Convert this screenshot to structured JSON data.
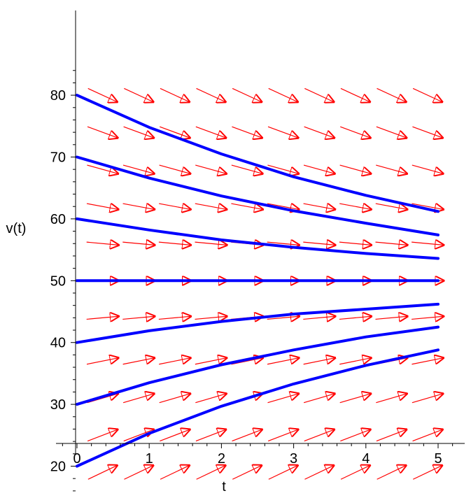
{
  "chart_data": {
    "type": "line",
    "title": "",
    "xlabel": "t",
    "ylabel": "v(t)",
    "xlim": [
      -0.3,
      5.3
    ],
    "ylim": [
      14,
      85
    ],
    "x_ticks": [
      0,
      1,
      2,
      3,
      4,
      5
    ],
    "y_ticks": [
      20,
      30,
      40,
      50,
      60,
      70,
      80
    ],
    "x_tick_labels": [
      "0",
      "1",
      "2",
      "3",
      "4",
      "5"
    ],
    "y_tick_labels": [
      "20",
      "30",
      "40",
      "50",
      "60",
      "70",
      "80"
    ],
    "grid": false,
    "legend": "none",
    "curve_color": "#0000ff",
    "field_color": "#ff0000",
    "series": [
      {
        "initial_value": 80,
        "x": [
          0,
          1,
          2,
          3,
          4,
          5
        ],
        "values": [
          80,
          74.8,
          70.5,
          66.8,
          63.8,
          61.2
        ]
      },
      {
        "initial_value": 70,
        "x": [
          0,
          1,
          2,
          3,
          4,
          5
        ],
        "values": [
          70,
          66.6,
          63.7,
          61.3,
          59.3,
          57.4
        ]
      },
      {
        "initial_value": 60,
        "x": [
          0,
          1,
          2,
          3,
          4,
          5
        ],
        "values": [
          60,
          58.2,
          56.6,
          55.4,
          54.4,
          53.6
        ]
      },
      {
        "initial_value": 50,
        "x": [
          0,
          1,
          2,
          3,
          4,
          5
        ],
        "values": [
          50,
          50,
          50,
          50,
          50,
          50
        ]
      },
      {
        "initial_value": 40,
        "x": [
          0,
          1,
          2,
          3,
          4,
          5
        ],
        "values": [
          40,
          41.9,
          43.4,
          44.6,
          45.4,
          46.2
        ]
      },
      {
        "initial_value": 30,
        "x": [
          0,
          1,
          2,
          3,
          4,
          5
        ],
        "values": [
          30,
          33.5,
          36.4,
          38.8,
          40.9,
          42.5
        ]
      },
      {
        "initial_value": 20,
        "x": [
          0,
          1,
          2,
          3,
          4,
          5
        ],
        "values": [
          20,
          25.3,
          29.7,
          33.3,
          36.3,
          38.8
        ]
      }
    ],
    "direction_field": {
      "equation_rate": 0.18,
      "equilibrium": 50,
      "t_values": [
        0.5,
        1.0,
        1.5,
        2.0,
        2.5,
        3.0,
        3.5,
        4.0,
        4.5,
        5.0
      ],
      "v_values": [
        19,
        25,
        31,
        37,
        44,
        50,
        56,
        62,
        68,
        74,
        80
      ]
    }
  }
}
